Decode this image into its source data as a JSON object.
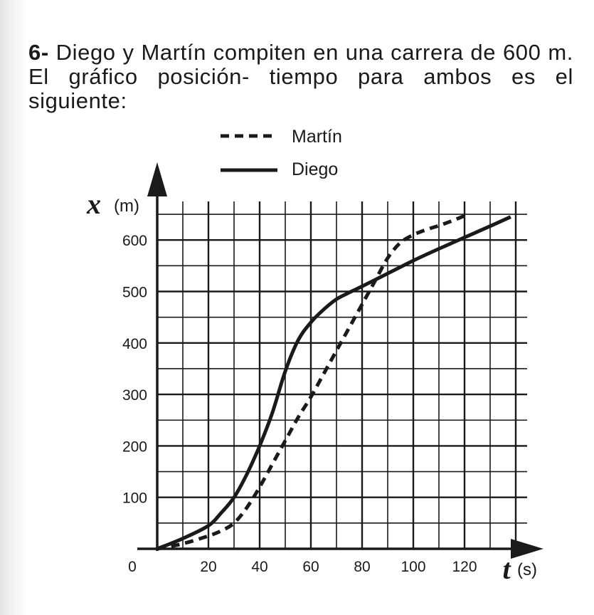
{
  "problem": {
    "number": "6-",
    "statement": "Diego y Martín compiten en una carrera de 600 m. El gráfico posición- tiempo para ambos es el siguiente:"
  },
  "chart_data": {
    "type": "line",
    "xlabel": "t",
    "xunit": "(s)",
    "ylabel": "x",
    "yunit": "(m)",
    "xlim": [
      0,
      145
    ],
    "ylim": [
      0,
      670
    ],
    "xticks": [
      0,
      20,
      40,
      60,
      80,
      100,
      120
    ],
    "yticks": [
      0,
      100,
      200,
      300,
      400,
      500,
      600
    ],
    "grid": true,
    "legend_position": "top-center",
    "series": [
      {
        "name": "Martín",
        "style": "dashed",
        "x": [
          0,
          10,
          20,
          25,
          30,
          35,
          40,
          45,
          50,
          55,
          60,
          65,
          70,
          75,
          80,
          85,
          90,
          95,
          100,
          105,
          110,
          115,
          120
        ],
        "y": [
          0,
          10,
          25,
          35,
          50,
          80,
          120,
          165,
          210,
          255,
          295,
          340,
          385,
          430,
          475,
          520,
          565,
          595,
          610,
          620,
          628,
          637,
          647
        ]
      },
      {
        "name": "Diego",
        "style": "solid",
        "x": [
          0,
          10,
          20,
          25,
          30,
          35,
          40,
          45,
          50,
          55,
          60,
          65,
          70,
          75,
          80,
          90,
          100,
          110,
          120,
          130,
          138
        ],
        "y": [
          0,
          20,
          45,
          70,
          100,
          145,
          200,
          265,
          345,
          405,
          440,
          465,
          485,
          498,
          510,
          535,
          560,
          583,
          605,
          627,
          645
        ]
      }
    ]
  }
}
